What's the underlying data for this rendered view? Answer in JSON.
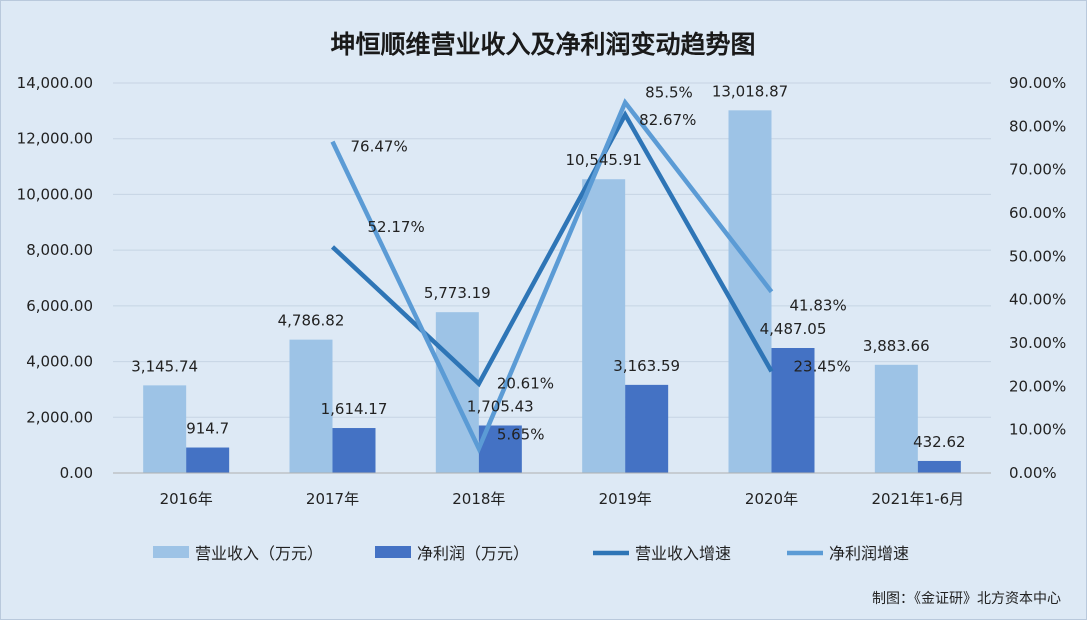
{
  "chart_data": {
    "type": "bar+line",
    "title": "坤恒顺维营业收入及净利润变动趋势图",
    "categories": [
      "2016年",
      "2017年",
      "2018年",
      "2019年",
      "2020年",
      "2021年1-6月"
    ],
    "ylim_left": [
      0,
      14000
    ],
    "ylim_right": [
      0,
      90
    ],
    "left_ticks": [
      "0.00",
      "2,000.00",
      "4,000.00",
      "6,000.00",
      "8,000.00",
      "10,000.00",
      "12,000.00",
      "14,000.00"
    ],
    "right_ticks": [
      "0.00%",
      "10.00%",
      "20.00%",
      "30.00%",
      "40.00%",
      "50.00%",
      "60.00%",
      "70.00%",
      "80.00%",
      "90.00%"
    ],
    "bars": [
      {
        "name": "营业收入（万元）",
        "color": "#9dc3e6",
        "values": [
          3145.74,
          4786.82,
          5773.19,
          10545.91,
          13018.87,
          3883.66
        ],
        "labels": [
          "3,145.74",
          "4,786.82",
          "5,773.19",
          "10,545.91",
          "13,018.87",
          "3,883.66"
        ]
      },
      {
        "name": "净利润（万元）",
        "color": "#4472c4",
        "values": [
          914.7,
          1614.17,
          1705.43,
          3163.59,
          4487.05,
          432.62
        ],
        "labels": [
          "914.7",
          "1,614.17",
          "1,705.43",
          "3,163.59",
          "4,487.05",
          "432.62"
        ]
      }
    ],
    "lines": [
      {
        "name": "营业收入增速",
        "color": "#2e75b6",
        "values": [
          null,
          52.17,
          20.61,
          82.67,
          23.45,
          null
        ],
        "labels": [
          "",
          "52.17%",
          "20.61%",
          "82.67%",
          "23.45%",
          ""
        ]
      },
      {
        "name": "净利润增速",
        "color": "#5b9bd5",
        "values": [
          null,
          76.47,
          5.65,
          85.5,
          41.83,
          null
        ],
        "labels": [
          "",
          "76.47%",
          "5.65%",
          "85.5%",
          "41.83%",
          ""
        ]
      }
    ],
    "legend_position": "bottom",
    "grid": true
  },
  "credit": "制图：《金证研》北方资本中心"
}
